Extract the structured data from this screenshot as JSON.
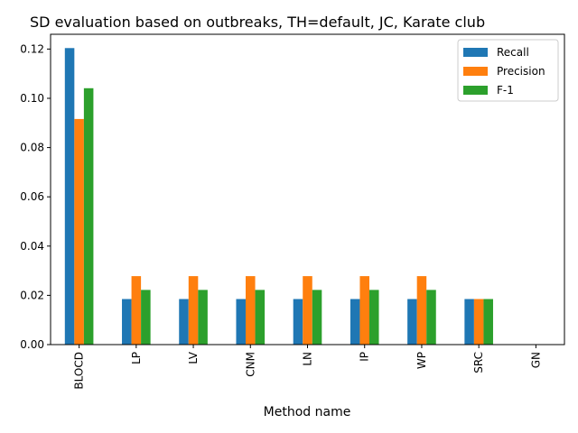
{
  "chart_data": {
    "type": "bar",
    "title": "SD evaluation based on outbreaks, TH=default, JC, Karate club",
    "xlabel": "Method name",
    "ylabel": "",
    "ylim": [
      0,
      0.126
    ],
    "yticks": [
      0.0,
      0.02,
      0.04,
      0.06,
      0.08,
      0.1,
      0.12
    ],
    "grid": false,
    "legend_position": "top-right",
    "categories": [
      "BLOCD",
      "LP",
      "LV",
      "CNM",
      "LN",
      "IP",
      "WP",
      "SRC",
      "GN"
    ],
    "series": [
      {
        "name": "Recall",
        "color": "#1f77b4",
        "values": [
          0.1204,
          0.0185,
          0.0185,
          0.0185,
          0.0185,
          0.0185,
          0.0185,
          0.0185,
          0.0
        ]
      },
      {
        "name": "Precision",
        "color": "#ff7f0e",
        "values": [
          0.0916,
          0.0278,
          0.0278,
          0.0278,
          0.0278,
          0.0278,
          0.0278,
          0.0185,
          0.0
        ]
      },
      {
        "name": "F-1",
        "color": "#2ca02c",
        "values": [
          0.1041,
          0.0222,
          0.0222,
          0.0222,
          0.0222,
          0.0222,
          0.0222,
          0.0185,
          0.0
        ]
      }
    ]
  }
}
